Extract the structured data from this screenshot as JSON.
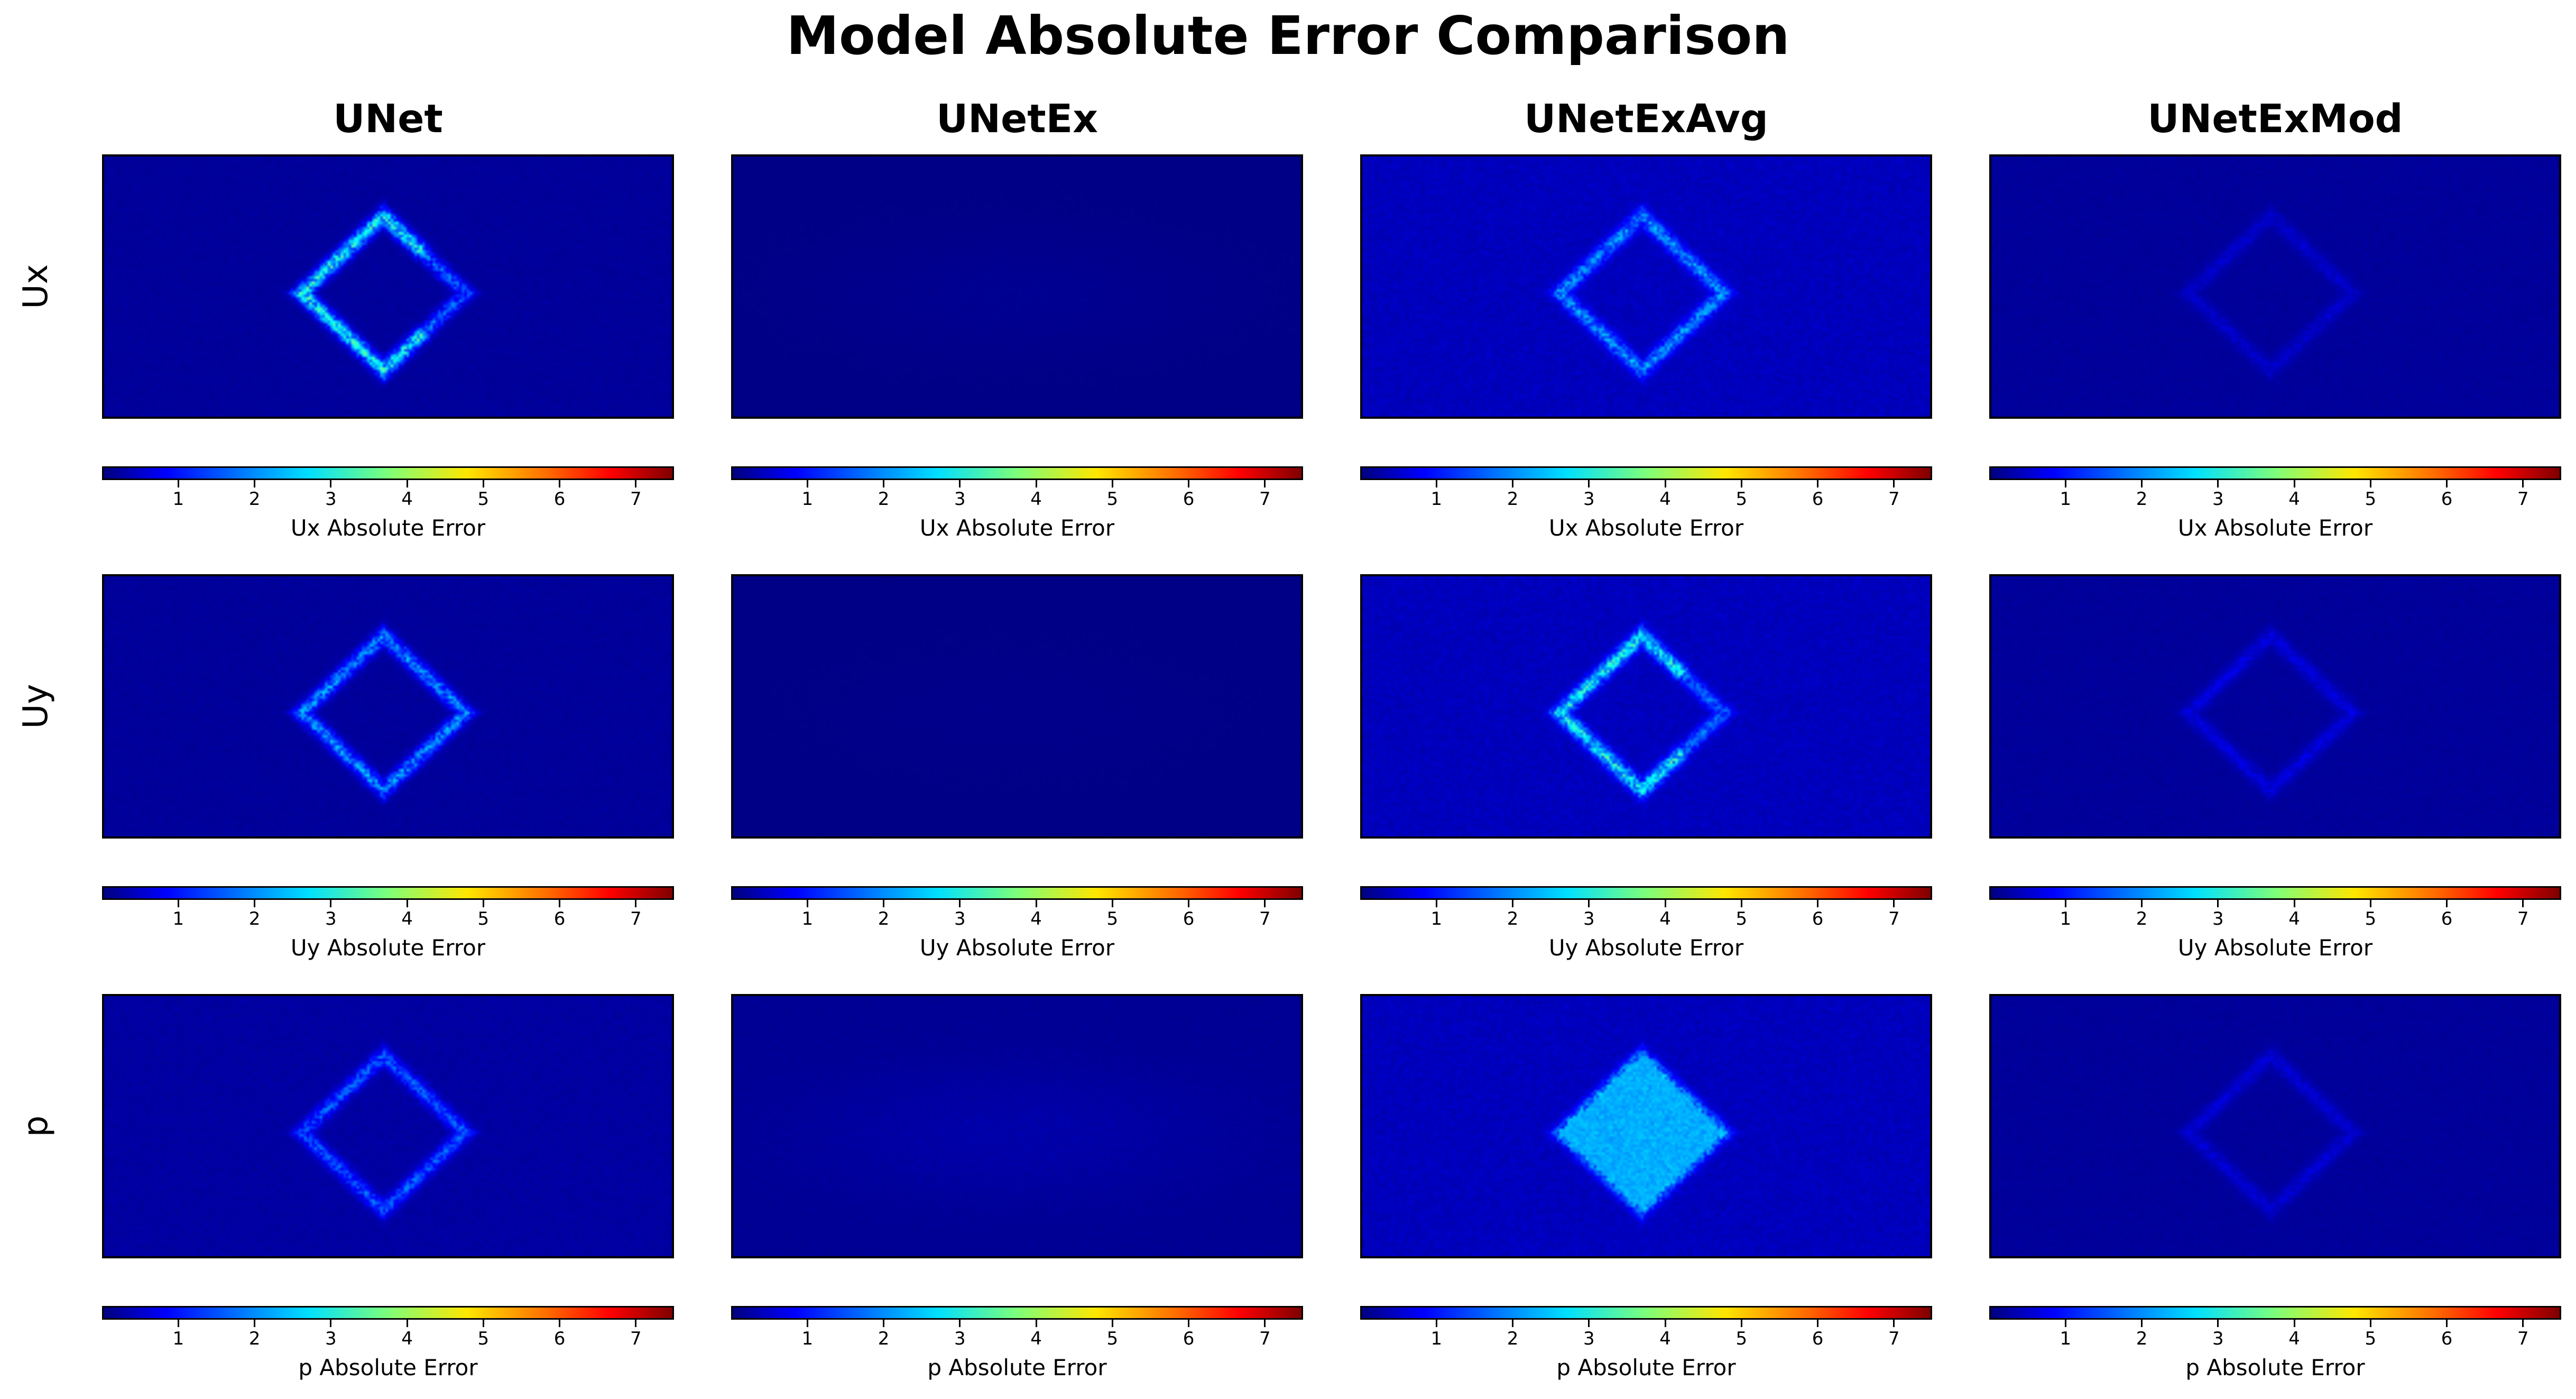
{
  "chart_data": {
    "type": "heatmap",
    "title": "Model Absolute Error Comparison",
    "columns": [
      "UNet",
      "UNetEx",
      "UNetExAvg",
      "UNetExMod"
    ],
    "rows": [
      "Ux",
      "Uy",
      "p"
    ],
    "colormap": "jet",
    "colorbar": {
      "ticks": [
        1,
        2,
        3,
        4,
        5,
        6,
        7
      ],
      "range": [
        0,
        7.5
      ],
      "labels": {
        "Ux": "Ux Absolute Error",
        "Uy": "Uy Absolute Error",
        "p": "p Absolute Error"
      }
    },
    "panels": [
      {
        "row": "Ux",
        "column": "UNet",
        "background_error": 0.2,
        "peak_error": 3.8,
        "pattern": "edge-ring"
      },
      {
        "row": "Ux",
        "column": "UNetEx",
        "background_error": 0.05,
        "peak_error": 0.15,
        "pattern": "faint"
      },
      {
        "row": "Ux",
        "column": "UNetExAvg",
        "background_error": 0.45,
        "peak_error": 2.6,
        "pattern": "ring"
      },
      {
        "row": "Ux",
        "column": "UNetExMod",
        "background_error": 0.2,
        "peak_error": 0.7,
        "pattern": "ring"
      },
      {
        "row": "Uy",
        "column": "UNet",
        "background_error": 0.2,
        "peak_error": 2.6,
        "pattern": "ring"
      },
      {
        "row": "Uy",
        "column": "UNetEx",
        "background_error": 0.05,
        "peak_error": 0.1,
        "pattern": "faint"
      },
      {
        "row": "Uy",
        "column": "UNetExAvg",
        "background_error": 0.45,
        "peak_error": 3.6,
        "pattern": "edge-ring"
      },
      {
        "row": "Uy",
        "column": "UNetExMod",
        "background_error": 0.2,
        "peak_error": 0.9,
        "pattern": "ring"
      },
      {
        "row": "p",
        "column": "UNet",
        "background_error": 0.25,
        "peak_error": 2.0,
        "pattern": "ring"
      },
      {
        "row": "p",
        "column": "UNetEx",
        "background_error": 0.15,
        "peak_error": 0.35,
        "pattern": "faint"
      },
      {
        "row": "p",
        "column": "UNetExAvg",
        "background_error": 0.45,
        "peak_error": 2.6,
        "pattern": "filled"
      },
      {
        "row": "p",
        "column": "UNetExMod",
        "background_error": 0.2,
        "peak_error": 0.8,
        "pattern": "ring"
      }
    ]
  }
}
